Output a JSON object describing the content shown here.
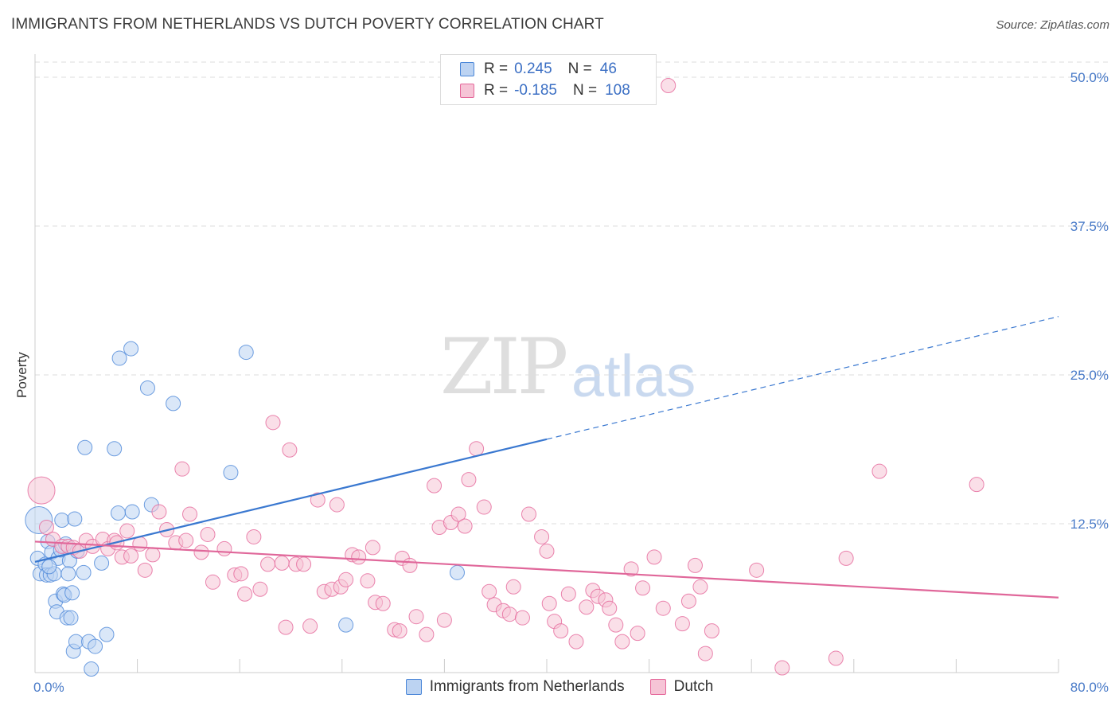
{
  "title": "IMMIGRANTS FROM NETHERLANDS VS DUTCH POVERTY CORRELATION CHART",
  "source": "Source: ZipAtlas.com",
  "watermark": {
    "zip": "ZIP",
    "atlas": "atlas"
  },
  "colors": {
    "blue": "#4a86d8",
    "blue_fill": "#bcd3f2",
    "pink": "#e5679a",
    "pink_fill": "#f6c4d6",
    "grid": "#dddddd",
    "tick_text": "#4a7bc8"
  },
  "legend": {
    "rows": [
      {
        "label": "R =",
        "r": "0.245",
        "n_label": "N =",
        "n": "46",
        "series": "blue"
      },
      {
        "label": "R =",
        "r": "-0.185",
        "n_label": "N =",
        "n": "108",
        "series": "pink"
      }
    ]
  },
  "chart_data": {
    "type": "scatter",
    "title": "IMMIGRANTS FROM NETHERLANDS VS DUTCH POVERTY CORRELATION CHART",
    "xlabel": "",
    "ylabel": "Poverty",
    "xlim": [
      0,
      80
    ],
    "ylim": [
      0,
      52
    ],
    "x_tick_labels": [
      "0.0%",
      "80.0%"
    ],
    "y_ticks": [
      12.5,
      25.0,
      37.5,
      50.0
    ],
    "y_tick_labels": [
      "12.5%",
      "25.0%",
      "37.5%",
      "50.0%"
    ],
    "grid": "horizontal-dashed",
    "legend_placement": "bottom",
    "series": [
      {
        "name": "Immigrants from Netherlands",
        "color": "blue",
        "r": 0.245,
        "n": 46,
        "trend": {
          "x0": 0,
          "y0": 9.3,
          "x1": 40,
          "y1": 19.6,
          "dashed_to_x": 80,
          "dashed_to_y": 29.9
        },
        "points": [
          [
            0.3,
            12.8
          ],
          [
            0.2,
            9.6
          ],
          [
            0.4,
            8.3
          ],
          [
            0.8,
            9.1
          ],
          [
            0.9,
            8.2
          ],
          [
            1.0,
            11.0
          ],
          [
            1.2,
            8.2
          ],
          [
            1.3,
            10.1
          ],
          [
            1.5,
            8.3
          ],
          [
            1.6,
            6.0
          ],
          [
            1.7,
            5.1
          ],
          [
            1.8,
            9.6
          ],
          [
            2.0,
            10.3
          ],
          [
            2.2,
            6.6
          ],
          [
            2.1,
            12.8
          ],
          [
            2.3,
            6.5
          ],
          [
            2.4,
            10.8
          ],
          [
            2.5,
            4.6
          ],
          [
            2.7,
            9.4
          ],
          [
            2.8,
            4.6
          ],
          [
            2.9,
            6.7
          ],
          [
            3.0,
            1.8
          ],
          [
            3.1,
            12.9
          ],
          [
            3.2,
            2.6
          ],
          [
            3.3,
            10.2
          ],
          [
            3.8,
            8.4
          ],
          [
            3.9,
            18.9
          ],
          [
            4.2,
            2.6
          ],
          [
            4.4,
            0.3
          ],
          [
            4.7,
            2.2
          ],
          [
            5.2,
            9.2
          ],
          [
            5.6,
            3.2
          ],
          [
            6.2,
            18.8
          ],
          [
            6.6,
            26.4
          ],
          [
            6.5,
            13.4
          ],
          [
            7.5,
            27.2
          ],
          [
            7.6,
            13.5
          ],
          [
            8.8,
            23.9
          ],
          [
            9.1,
            14.1
          ],
          [
            10.8,
            22.6
          ],
          [
            15.3,
            16.8
          ],
          [
            16.5,
            26.9
          ],
          [
            24.3,
            4.0
          ],
          [
            33.0,
            8.4
          ],
          [
            2.6,
            8.3
          ],
          [
            1.1,
            8.9
          ]
        ]
      },
      {
        "name": "Dutch",
        "color": "pink",
        "r": -0.185,
        "n": 108,
        "trend": {
          "x0": 0,
          "y0": 11.0,
          "x1": 80,
          "y1": 6.3
        },
        "points": [
          [
            0.5,
            15.3
          ],
          [
            0.9,
            12.2
          ],
          [
            1.4,
            11.2
          ],
          [
            2.1,
            10.6
          ],
          [
            2.6,
            10.6
          ],
          [
            3.0,
            10.5
          ],
          [
            3.5,
            10.2
          ],
          [
            4.0,
            11.1
          ],
          [
            4.5,
            10.6
          ],
          [
            5.3,
            11.2
          ],
          [
            5.7,
            10.4
          ],
          [
            6.2,
            11.1
          ],
          [
            6.8,
            9.7
          ],
          [
            7.2,
            11.9
          ],
          [
            7.5,
            9.8
          ],
          [
            8.2,
            10.8
          ],
          [
            8.6,
            8.6
          ],
          [
            9.2,
            9.9
          ],
          [
            9.7,
            13.5
          ],
          [
            10.3,
            12.0
          ],
          [
            11.0,
            10.9
          ],
          [
            11.5,
            17.1
          ],
          [
            11.8,
            11.1
          ],
          [
            12.1,
            13.3
          ],
          [
            13.0,
            10.1
          ],
          [
            13.5,
            11.6
          ],
          [
            13.9,
            7.6
          ],
          [
            14.8,
            10.4
          ],
          [
            15.6,
            8.2
          ],
          [
            16.1,
            8.3
          ],
          [
            16.4,
            6.6
          ],
          [
            17.1,
            11.4
          ],
          [
            17.6,
            7.0
          ],
          [
            18.2,
            9.1
          ],
          [
            18.6,
            21.0
          ],
          [
            19.3,
            9.2
          ],
          [
            19.6,
            3.8
          ],
          [
            19.9,
            18.7
          ],
          [
            20.4,
            9.1
          ],
          [
            21.0,
            9.1
          ],
          [
            21.5,
            3.9
          ],
          [
            22.1,
            14.5
          ],
          [
            22.6,
            6.8
          ],
          [
            23.2,
            7.0
          ],
          [
            23.6,
            14.1
          ],
          [
            23.9,
            7.2
          ],
          [
            24.3,
            7.8
          ],
          [
            24.8,
            9.9
          ],
          [
            25.3,
            9.7
          ],
          [
            26.0,
            7.7
          ],
          [
            26.4,
            10.5
          ],
          [
            26.6,
            5.9
          ],
          [
            27.2,
            5.8
          ],
          [
            28.1,
            3.6
          ],
          [
            28.5,
            3.5
          ],
          [
            28.7,
            9.6
          ],
          [
            29.3,
            9.0
          ],
          [
            29.8,
            4.7
          ],
          [
            30.6,
            3.2
          ],
          [
            31.2,
            15.7
          ],
          [
            31.6,
            12.2
          ],
          [
            32.0,
            4.4
          ],
          [
            32.5,
            12.6
          ],
          [
            33.1,
            13.3
          ],
          [
            33.6,
            12.3
          ],
          [
            33.9,
            16.2
          ],
          [
            34.5,
            18.8
          ],
          [
            35.1,
            13.9
          ],
          [
            35.5,
            6.8
          ],
          [
            35.9,
            5.7
          ],
          [
            36.6,
            5.2
          ],
          [
            37.1,
            4.9
          ],
          [
            37.4,
            7.2
          ],
          [
            38.1,
            4.6
          ],
          [
            38.6,
            13.3
          ],
          [
            39.6,
            11.4
          ],
          [
            40.0,
            10.2
          ],
          [
            40.2,
            5.8
          ],
          [
            40.6,
            4.3
          ],
          [
            41.1,
            3.5
          ],
          [
            41.7,
            6.6
          ],
          [
            42.3,
            2.6
          ],
          [
            43.1,
            5.5
          ],
          [
            43.6,
            6.9
          ],
          [
            44.0,
            6.4
          ],
          [
            44.6,
            6.1
          ],
          [
            44.9,
            5.4
          ],
          [
            45.4,
            4.0
          ],
          [
            45.9,
            2.6
          ],
          [
            46.6,
            8.7
          ],
          [
            47.1,
            3.3
          ],
          [
            47.5,
            7.1
          ],
          [
            48.4,
            9.7
          ],
          [
            49.1,
            5.4
          ],
          [
            49.5,
            49.3
          ],
          [
            50.6,
            4.1
          ],
          [
            51.1,
            6.0
          ],
          [
            51.6,
            9.0
          ],
          [
            52.0,
            7.2
          ],
          [
            52.4,
            1.6
          ],
          [
            52.9,
            3.5
          ],
          [
            56.4,
            8.6
          ],
          [
            58.4,
            0.4
          ],
          [
            62.6,
            1.2
          ],
          [
            63.4,
            9.6
          ],
          [
            66.0,
            16.9
          ],
          [
            73.6,
            15.8
          ],
          [
            6.4,
            10.9
          ]
        ]
      }
    ]
  }
}
